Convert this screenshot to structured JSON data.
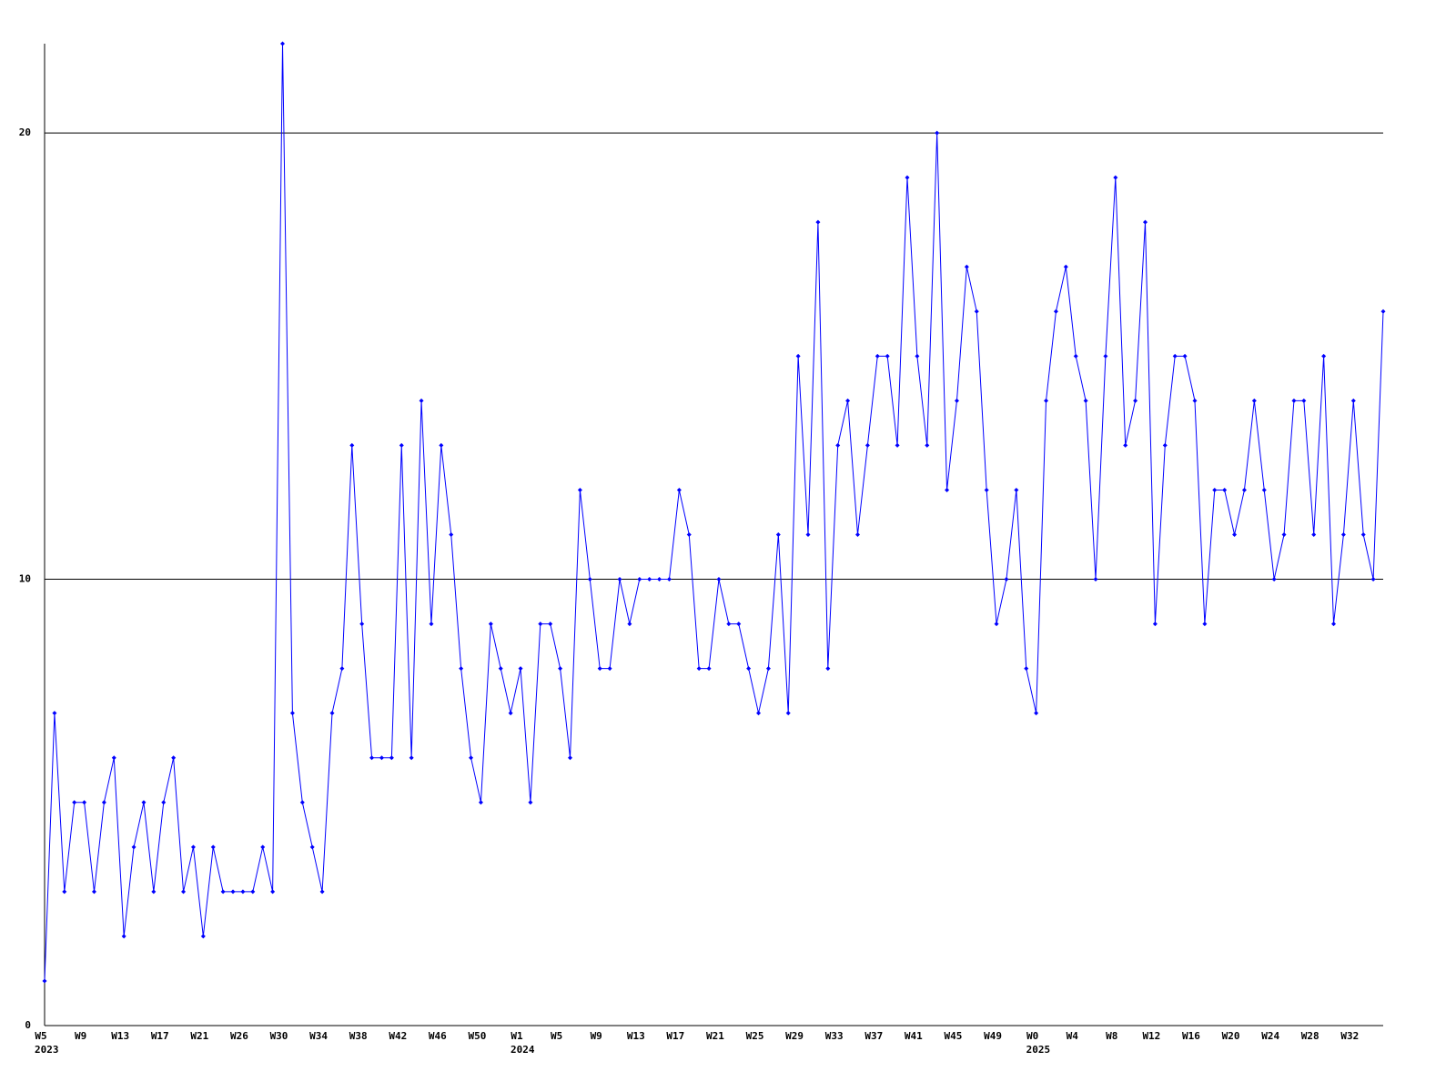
{
  "chart_data": {
    "type": "line",
    "categories": [
      "W5",
      null,
      null,
      null,
      "W9",
      null,
      null,
      null,
      "W13",
      null,
      null,
      null,
      "W17",
      null,
      null,
      null,
      "W21",
      null,
      null,
      null,
      "W26",
      null,
      null,
      null,
      "W30",
      null,
      null,
      null,
      "W34",
      null,
      null,
      null,
      "W38",
      null,
      null,
      null,
      "W42",
      null,
      null,
      null,
      "W46",
      null,
      null,
      null,
      "W50",
      null,
      null,
      null,
      "W1",
      null,
      null,
      null,
      "W5",
      null,
      null,
      null,
      "W9",
      null,
      null,
      null,
      "W13",
      null,
      null,
      null,
      "W17",
      null,
      null,
      null,
      "W21",
      null,
      null,
      null,
      "W25",
      null,
      null,
      null,
      "W29",
      null,
      null,
      null,
      "W33",
      null,
      null,
      null,
      "W37",
      null,
      null,
      null,
      "W41",
      null,
      null,
      null,
      "W45",
      null,
      null,
      null,
      "W49",
      null,
      null,
      null,
      "W0",
      null,
      null,
      null,
      "W4",
      null,
      null,
      null,
      "W8",
      null,
      null,
      null,
      "W12",
      null,
      null,
      null,
      "W16",
      null,
      null,
      null,
      "W20",
      null,
      null,
      null,
      "W24",
      null,
      null,
      null,
      "W28",
      null,
      null,
      null,
      "W32",
      null,
      null,
      null
    ],
    "category_years": [
      "2023",
      null,
      null,
      null,
      null,
      null,
      null,
      null,
      null,
      null,
      null,
      null,
      null,
      null,
      null,
      null,
      null,
      null,
      null,
      null,
      null,
      null,
      null,
      null,
      null,
      null,
      null,
      null,
      null,
      null,
      null,
      null,
      null,
      null,
      null,
      null,
      null,
      null,
      null,
      null,
      null,
      null,
      null,
      null,
      null,
      null,
      null,
      null,
      "2024",
      null,
      null,
      null,
      null,
      null,
      null,
      null,
      null,
      null,
      null,
      null,
      null,
      null,
      null,
      null,
      null,
      null,
      null,
      null,
      null,
      null,
      null,
      null,
      null,
      null,
      null,
      null,
      null,
      null,
      null,
      null,
      null,
      null,
      null,
      null,
      null,
      null,
      null,
      null,
      null,
      null,
      null,
      null,
      null,
      null,
      null,
      null,
      null,
      null,
      null,
      null,
      "2025",
      null,
      null,
      null,
      null,
      null,
      null,
      null,
      null,
      null,
      null,
      null,
      null,
      null,
      null,
      null,
      null,
      null,
      null,
      null,
      null,
      null,
      null,
      null,
      null,
      null,
      null,
      null,
      null,
      null,
      null,
      null,
      null,
      null,
      null,
      null
    ],
    "series": [
      {
        "color": "#0000ff",
        "values": [
          1,
          7,
          3,
          5,
          5,
          3,
          5,
          6,
          2,
          4,
          5,
          3,
          5,
          6,
          3,
          4,
          2,
          4,
          3,
          3,
          3,
          3,
          4,
          3,
          22,
          7,
          5,
          4,
          3,
          7,
          8,
          13,
          9,
          6,
          6,
          6,
          13,
          6,
          14,
          9,
          13,
          11,
          8,
          6,
          5,
          9,
          8,
          7,
          8,
          5,
          9,
          9,
          8,
          6,
          12,
          10,
          8,
          8,
          10,
          9,
          10,
          10,
          10,
          10,
          12,
          11,
          8,
          8,
          10,
          9,
          9,
          8,
          7,
          8,
          11,
          7,
          15,
          11,
          18,
          8,
          13,
          14,
          11,
          13,
          15,
          15,
          13,
          19,
          15,
          13,
          20,
          12,
          14,
          17,
          16,
          12,
          9,
          10,
          12,
          8,
          7,
          14,
          16,
          17,
          15,
          14,
          10,
          15,
          19,
          13,
          14,
          18,
          9,
          13,
          15,
          15,
          14,
          9,
          12,
          12,
          11,
          12,
          14,
          12,
          10,
          11,
          14,
          14,
          11,
          15,
          9,
          11,
          14,
          11,
          10,
          16
        ]
      }
    ],
    "ylim": [
      0,
      22
    ],
    "yticks": [
      0,
      10,
      20
    ],
    "grid": true
  }
}
